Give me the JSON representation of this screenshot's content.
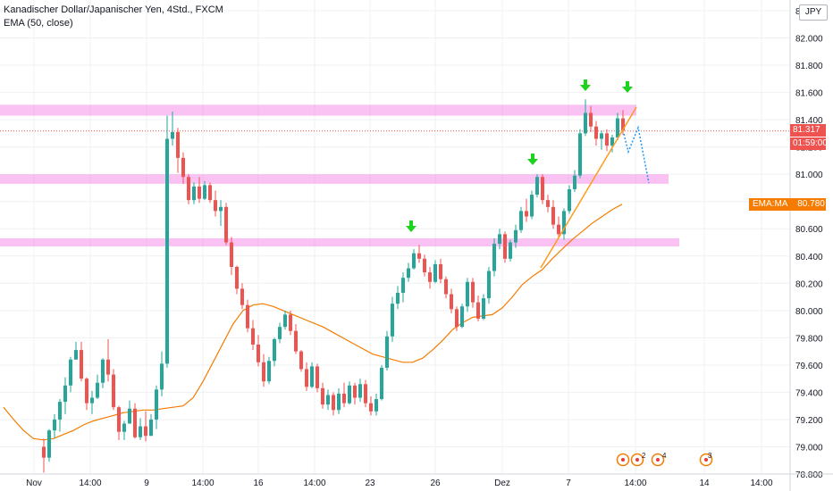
{
  "legend": {
    "title": "Kanadischer Dollar/Japanischer Yen, 4Std., FXCM",
    "indicator": "EMA (50, close)"
  },
  "currency": "JPY",
  "colors": {
    "up": "#26a69a",
    "down": "#ef5350",
    "ema": "#f57c00",
    "zone": "#f48fe8",
    "arrow": "#1bd41b",
    "trend": "#ff9a1f",
    "projection": "#2196f3",
    "grid": "#eef0f3",
    "price_line": "#ef5350"
  },
  "tags": {
    "last_price": "81.317",
    "countdown": "01:59:00",
    "ema_label": "EMA:MA",
    "ema_value": "80.780"
  },
  "events": [
    "2",
    "4",
    "3"
  ],
  "chart_data": {
    "type": "candlestick",
    "title": "Kanadischer Dollar/Japanischer Yen, 4Std., FXCM",
    "x_ticks": [
      "Nov",
      "14:00",
      "9",
      "14:00",
      "16",
      "14:00",
      "23",
      "26",
      "Dez",
      "7",
      "14:00",
      "14",
      "14:00"
    ],
    "y_ticks": [
      "78.800",
      "79.000",
      "79.200",
      "79.400",
      "79.600",
      "79.800",
      "80.000",
      "80.200",
      "80.400",
      "80.600",
      "80.800",
      "81.000",
      "81.200",
      "81.400",
      "81.600",
      "81.800",
      "82.000",
      "82.200"
    ],
    "ylim": [
      78.75,
      82.25
    ],
    "last_price": 81.317,
    "ema": {
      "name": "EMA (50, close)",
      "last_value": 80.78
    },
    "resistance_zones": [
      {
        "low": 81.43,
        "high": 81.51
      },
      {
        "low": 80.93,
        "high": 81.0
      },
      {
        "low": 80.47,
        "high": 80.53
      }
    ],
    "candles": [
      [
        79.0,
        79.06,
        78.81,
        78.92
      ],
      [
        78.92,
        79.13,
        78.89,
        79.12
      ],
      [
        79.12,
        79.24,
        79.06,
        79.2
      ],
      [
        79.2,
        79.35,
        79.11,
        79.33
      ],
      [
        79.33,
        79.51,
        79.24,
        79.45
      ],
      [
        79.45,
        79.66,
        79.4,
        79.64
      ],
      [
        79.64,
        79.77,
        79.64,
        79.71
      ],
      [
        79.71,
        79.77,
        79.48,
        79.5
      ],
      [
        79.5,
        79.51,
        79.27,
        79.32
      ],
      [
        79.32,
        79.41,
        79.24,
        79.36
      ],
      [
        79.36,
        79.53,
        79.35,
        79.47
      ],
      [
        79.47,
        79.65,
        79.43,
        79.64
      ],
      [
        79.64,
        79.79,
        79.48,
        79.53
      ],
      [
        79.53,
        79.57,
        79.27,
        79.29
      ],
      [
        79.29,
        79.3,
        79.05,
        79.11
      ],
      [
        79.11,
        79.19,
        79.05,
        79.17
      ],
      [
        79.17,
        79.34,
        79.17,
        79.28
      ],
      [
        79.28,
        79.32,
        79.06,
        79.07
      ],
      [
        79.07,
        79.21,
        79.05,
        79.15
      ],
      [
        79.15,
        79.26,
        79.04,
        79.08
      ],
      [
        79.08,
        79.24,
        79.08,
        79.2
      ],
      [
        79.2,
        79.45,
        79.13,
        79.42
      ],
      [
        79.42,
        79.7,
        79.37,
        79.61
      ],
      [
        79.61,
        81.43,
        79.58,
        81.26
      ],
      [
        81.26,
        81.46,
        81.21,
        81.31
      ],
      [
        81.31,
        81.34,
        81.01,
        81.12
      ],
      [
        81.12,
        81.16,
        80.93,
        80.98
      ],
      [
        80.98,
        81.0,
        80.78,
        80.81
      ],
      [
        80.81,
        80.94,
        80.78,
        80.91
      ],
      [
        80.91,
        80.98,
        80.79,
        80.82
      ],
      [
        80.82,
        80.95,
        80.81,
        80.92
      ],
      [
        80.92,
        80.94,
        80.79,
        80.81
      ],
      [
        80.81,
        80.88,
        80.69,
        80.73
      ],
      [
        80.73,
        80.81,
        80.62,
        80.76
      ],
      [
        80.76,
        80.79,
        80.48,
        80.5
      ],
      [
        80.5,
        80.54,
        80.26,
        80.32
      ],
      [
        80.32,
        80.33,
        80.12,
        80.16
      ],
      [
        80.16,
        80.2,
        80.01,
        80.04
      ],
      [
        80.04,
        80.08,
        79.84,
        79.87
      ],
      [
        79.87,
        79.93,
        79.71,
        79.75
      ],
      [
        79.75,
        79.82,
        79.59,
        79.62
      ],
      [
        79.62,
        79.68,
        79.44,
        79.48
      ],
      [
        79.48,
        79.66,
        79.46,
        79.63
      ],
      [
        79.63,
        79.8,
        79.59,
        79.79
      ],
      [
        79.79,
        79.91,
        79.76,
        79.88
      ],
      [
        79.88,
        80.0,
        79.86,
        79.97
      ],
      [
        79.97,
        80.0,
        79.82,
        79.85
      ],
      [
        79.85,
        79.9,
        79.68,
        79.7
      ],
      [
        79.7,
        79.71,
        79.55,
        79.57
      ],
      [
        79.57,
        79.62,
        79.41,
        79.44
      ],
      [
        79.44,
        79.62,
        79.43,
        79.59
      ],
      [
        79.59,
        79.61,
        79.4,
        79.43
      ],
      [
        79.43,
        79.47,
        79.28,
        79.31
      ],
      [
        79.31,
        79.42,
        79.27,
        79.38
      ],
      [
        79.38,
        79.4,
        79.23,
        79.27
      ],
      [
        79.27,
        79.43,
        79.24,
        79.39
      ],
      [
        79.39,
        79.47,
        79.29,
        79.32
      ],
      [
        79.32,
        79.48,
        79.31,
        79.45
      ],
      [
        79.45,
        79.47,
        79.31,
        79.36
      ],
      [
        79.36,
        79.5,
        79.33,
        79.46
      ],
      [
        79.46,
        79.49,
        79.29,
        79.32
      ],
      [
        79.32,
        79.37,
        79.23,
        79.26
      ],
      [
        79.26,
        79.39,
        79.23,
        79.35
      ],
      [
        79.35,
        79.6,
        79.34,
        79.58
      ],
      [
        79.58,
        79.85,
        79.56,
        79.81
      ],
      [
        79.81,
        80.1,
        79.77,
        80.05
      ],
      [
        80.05,
        80.18,
        80.01,
        80.13
      ],
      [
        80.13,
        80.28,
        80.06,
        80.24
      ],
      [
        80.24,
        80.35,
        80.21,
        80.31
      ],
      [
        80.31,
        80.45,
        80.3,
        80.42
      ],
      [
        80.42,
        80.48,
        80.35,
        80.38
      ],
      [
        80.38,
        80.41,
        80.25,
        80.28
      ],
      [
        80.28,
        80.32,
        80.16,
        80.21
      ],
      [
        80.21,
        80.37,
        80.2,
        80.34
      ],
      [
        80.34,
        80.38,
        80.2,
        80.23
      ],
      [
        80.23,
        80.25,
        80.09,
        80.12
      ],
      [
        80.12,
        80.16,
        79.98,
        80.01
      ],
      [
        80.01,
        80.03,
        79.85,
        79.88
      ],
      [
        79.88,
        80.05,
        79.87,
        80.03
      ],
      [
        80.03,
        80.24,
        79.99,
        80.21
      ],
      [
        80.21,
        80.24,
        80.02,
        80.06
      ],
      [
        80.06,
        80.11,
        79.92,
        79.94
      ],
      [
        79.94,
        80.12,
        79.93,
        80.09
      ],
      [
        80.09,
        80.32,
        80.05,
        80.29
      ],
      [
        80.29,
        80.53,
        80.25,
        80.49
      ],
      [
        80.49,
        80.6,
        80.45,
        80.56
      ],
      [
        80.56,
        80.58,
        80.35,
        80.38
      ],
      [
        80.38,
        80.52,
        80.36,
        80.5
      ],
      [
        80.5,
        80.63,
        80.46,
        80.59
      ],
      [
        80.59,
        80.76,
        80.57,
        80.73
      ],
      [
        80.73,
        80.82,
        80.65,
        80.69
      ],
      [
        80.69,
        80.88,
        80.67,
        80.85
      ],
      [
        80.85,
        81.0,
        80.83,
        80.98
      ],
      [
        80.98,
        81.0,
        80.78,
        80.81
      ],
      [
        80.81,
        80.85,
        80.72,
        80.76
      ],
      [
        80.76,
        80.81,
        80.6,
        80.63
      ],
      [
        80.63,
        80.69,
        80.53,
        80.56
      ],
      [
        80.56,
        80.75,
        80.52,
        80.73
      ],
      [
        80.73,
        80.92,
        80.71,
        80.89
      ],
      [
        80.89,
        81.03,
        80.87,
        80.99
      ],
      [
        80.99,
        81.33,
        80.97,
        81.3
      ],
      [
        81.3,
        81.55,
        81.28,
        81.45
      ],
      [
        81.45,
        81.5,
        81.31,
        81.35
      ],
      [
        81.35,
        81.39,
        81.21,
        81.26
      ],
      [
        81.26,
        81.32,
        81.18,
        81.3
      ],
      [
        81.3,
        81.33,
        81.17,
        81.21
      ],
      [
        81.21,
        81.29,
        81.16,
        81.27
      ],
      [
        81.27,
        81.45,
        81.25,
        81.41
      ],
      [
        81.41,
        81.47,
        81.29,
        81.32
      ]
    ],
    "ema_values": [
      79.29,
      79.2,
      79.12,
      79.06,
      79.05,
      79.06,
      79.09,
      79.12,
      79.16,
      79.19,
      79.21,
      79.23,
      79.25,
      79.26,
      79.27,
      79.27,
      79.28,
      79.29,
      79.3,
      79.36,
      79.48,
      79.62,
      79.76,
      79.9,
      80.0,
      80.04,
      80.05,
      80.03,
      80.0,
      79.97,
      79.94,
      79.91,
      79.88,
      79.84,
      79.8,
      79.76,
      79.72,
      79.68,
      79.66,
      79.64,
      79.62,
      79.62,
      79.65,
      79.71,
      79.78,
      79.86,
      79.91,
      79.95,
      79.96,
      79.97,
      80.02,
      80.1,
      80.19,
      80.25,
      80.3,
      80.38,
      80.45,
      80.52,
      80.58,
      80.64,
      80.69,
      80.74,
      80.78
    ]
  }
}
